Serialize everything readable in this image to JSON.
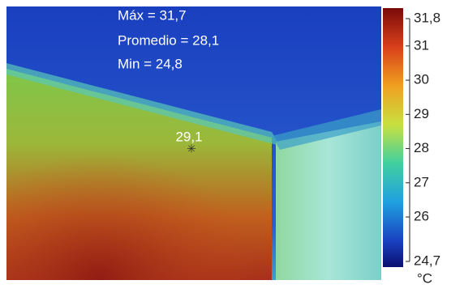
{
  "readouts": [
    "Máx = 31,7",
    "Promedio = 28,1",
    "Min = 24,8"
  ],
  "spot": "29,1",
  "colorbar": {
    "max": {
      "value": 31.8,
      "label": "31,8"
    },
    "min": {
      "value": 24.7,
      "label": "24,7"
    },
    "ticks": [
      31,
      30,
      29,
      28,
      27,
      26
    ],
    "unit": "°C"
  }
}
